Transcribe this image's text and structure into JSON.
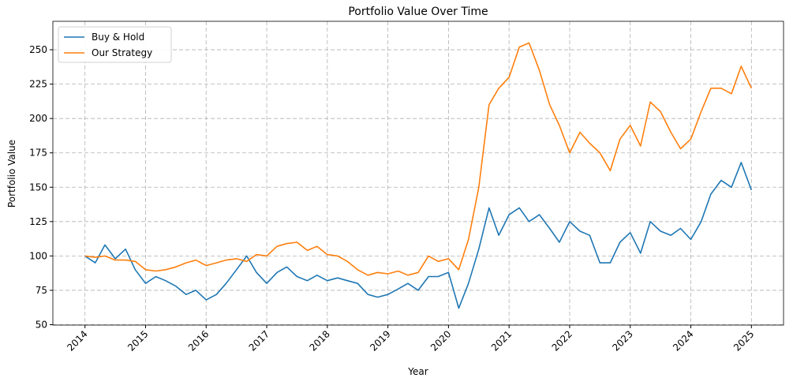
{
  "chart_data": {
    "type": "line",
    "title": "Portfolio Value Over Time",
    "xlabel": "Year",
    "ylabel": "Portfolio Value",
    "x": [
      2014,
      2014.17,
      2014.33,
      2014.5,
      2014.67,
      2014.83,
      2015,
      2015.17,
      2015.33,
      2015.5,
      2015.67,
      2015.83,
      2016,
      2016.17,
      2016.33,
      2016.5,
      2016.67,
      2016.83,
      2017,
      2017.17,
      2017.33,
      2017.5,
      2017.67,
      2017.83,
      2018,
      2018.17,
      2018.33,
      2018.5,
      2018.67,
      2018.83,
      2019,
      2019.17,
      2019.33,
      2019.5,
      2019.67,
      2019.83,
      2020,
      2020.17,
      2020.33,
      2020.5,
      2020.67,
      2020.83,
      2021,
      2021.17,
      2021.33,
      2021.5,
      2021.67,
      2021.83,
      2022,
      2022.17,
      2022.33,
      2022.5,
      2022.67,
      2022.83,
      2023,
      2023.17,
      2023.33,
      2023.5,
      2023.67,
      2023.83,
      2024,
      2024.17,
      2024.33,
      2024.5,
      2024.67,
      2024.83,
      2025
    ],
    "series": [
      {
        "name": "Buy & Hold",
        "color": "#1f77b4",
        "values": [
          100,
          95,
          108,
          98,
          105,
          90,
          80,
          85,
          82,
          78,
          72,
          75,
          68,
          72,
          80,
          90,
          100,
          88,
          80,
          88,
          92,
          85,
          82,
          86,
          82,
          84,
          82,
          80,
          72,
          70,
          72,
          76,
          80,
          75,
          85,
          85,
          88,
          62,
          80,
          105,
          135,
          115,
          130,
          135,
          125,
          130,
          120,
          110,
          125,
          118,
          115,
          95,
          95,
          110,
          117,
          102,
          125,
          118,
          115,
          120,
          112,
          125,
          145,
          155,
          150,
          168,
          148
        ]
      },
      {
        "name": "Our Strategy",
        "color": "#ff7f0e",
        "values": [
          100,
          99,
          100,
          97,
          97,
          96,
          90,
          89,
          90,
          92,
          95,
          97,
          93,
          95,
          97,
          98,
          96,
          101,
          100,
          107,
          109,
          110,
          104,
          107,
          101,
          100,
          96,
          90,
          86,
          88,
          87,
          89,
          86,
          88,
          100,
          96,
          98,
          90,
          112,
          150,
          210,
          222,
          230,
          252,
          255,
          235,
          210,
          195,
          175,
          190,
          182,
          175,
          162,
          185,
          195,
          180,
          212,
          205,
          190,
          178,
          185,
          205,
          222,
          222,
          218,
          238,
          222
        ]
      }
    ],
    "xlim": [
      2013.47,
      2025.53
    ],
    "xticks": [
      2014,
      2015,
      2016,
      2017,
      2018,
      2019,
      2020,
      2021,
      2022,
      2023,
      2024,
      2025
    ],
    "ylim": [
      49.7,
      270.7
    ],
    "yticks": [
      50,
      75,
      100,
      125,
      150,
      175,
      200,
      225,
      250
    ],
    "grid": true,
    "legend": "upper left"
  }
}
